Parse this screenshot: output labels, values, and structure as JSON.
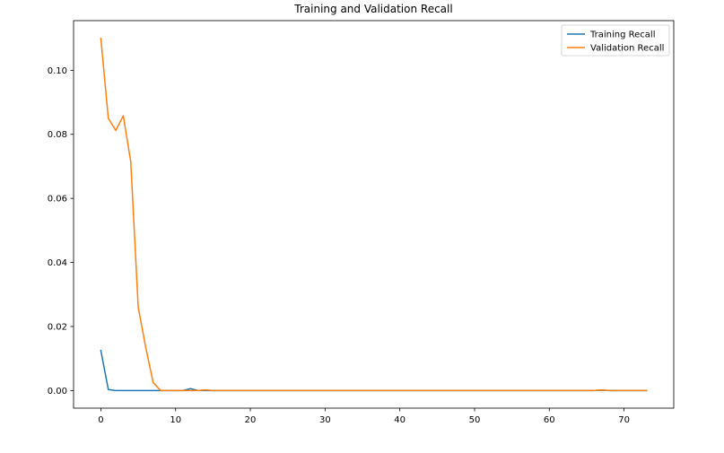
{
  "chart_data": {
    "type": "line",
    "title": "Training and Validation Recall",
    "xlabel": "",
    "ylabel": "",
    "xlim": [
      -3.65,
      76.65
    ],
    "ylim": [
      -0.0055,
      0.1155
    ],
    "xticks": [
      0,
      10,
      20,
      30,
      40,
      50,
      60,
      70
    ],
    "yticks": [
      0.0,
      0.02,
      0.04,
      0.06,
      0.08,
      0.1
    ],
    "ytick_labels": [
      "0.00",
      "0.02",
      "0.04",
      "0.06",
      "0.08",
      "0.10"
    ],
    "xtick_labels": [
      "0",
      "10",
      "20",
      "30",
      "40",
      "50",
      "60",
      "70"
    ],
    "grid": false,
    "legend": "upper right",
    "series": [
      {
        "name": "Training Recall",
        "color": "#1f77b4",
        "points": [
          [
            0,
            0.0125
          ],
          [
            1,
            0.0003
          ],
          [
            2,
            0.0
          ],
          [
            3,
            0.0
          ],
          [
            4,
            0.0
          ],
          [
            5,
            0.0
          ],
          [
            6,
            0.0
          ],
          [
            7,
            0.0
          ],
          [
            8,
            0.0
          ],
          [
            9,
            0.0
          ],
          [
            10,
            0.0
          ],
          [
            11,
            0.0
          ],
          [
            12,
            0.0006
          ],
          [
            13,
            0.0
          ],
          [
            14,
            0.0
          ],
          [
            15,
            0.0
          ],
          [
            16,
            0.0
          ],
          [
            66,
            0.0
          ],
          [
            67,
            0.0001
          ],
          [
            68,
            0.0
          ],
          [
            73,
            0.0
          ]
        ]
      },
      {
        "name": "Validation Recall",
        "color": "#ff7f0e",
        "points": [
          [
            0,
            0.11
          ],
          [
            1,
            0.085
          ],
          [
            2,
            0.0812
          ],
          [
            3,
            0.0858
          ],
          [
            4,
            0.0715
          ],
          [
            5,
            0.026
          ],
          [
            6,
            0.0135
          ],
          [
            7,
            0.0025
          ],
          [
            8,
            0.0
          ],
          [
            9,
            0.0
          ],
          [
            10,
            0.0
          ],
          [
            11,
            0.0
          ],
          [
            12,
            0.0
          ],
          [
            13,
            0.0
          ],
          [
            14,
            0.0002
          ],
          [
            15,
            0.0
          ],
          [
            16,
            0.0
          ],
          [
            66,
            0.0
          ],
          [
            67,
            0.0002
          ],
          [
            68,
            0.0
          ],
          [
            73,
            0.0
          ]
        ]
      }
    ]
  }
}
